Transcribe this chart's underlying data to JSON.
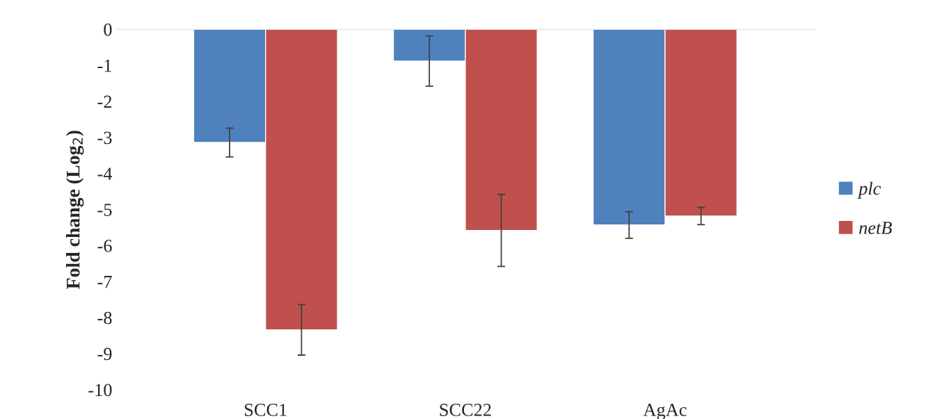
{
  "chart_data": {
    "type": "bar",
    "ylabel": "Fold change (Log$_{2}$)",
    "categories": [
      "SCC1",
      "SCC22",
      "AgAc"
    ],
    "series": [
      {
        "name": "plc",
        "color": "#4f81bd",
        "values": [
          -3.14,
          -0.88,
          -5.43
        ],
        "errors": [
          0.4,
          0.7,
          0.37
        ]
      },
      {
        "name": "netB",
        "color": "#c0504d",
        "values": [
          -8.34,
          -5.58,
          -5.18
        ],
        "errors": [
          0.7,
          1.0,
          0.24
        ]
      }
    ],
    "ylim": [
      -10,
      0
    ],
    "yticks": [
      -10,
      -9,
      -8,
      -7,
      -6,
      -5,
      -4,
      -3,
      -2,
      -1,
      0
    ],
    "grid": false,
    "legend": "right"
  }
}
